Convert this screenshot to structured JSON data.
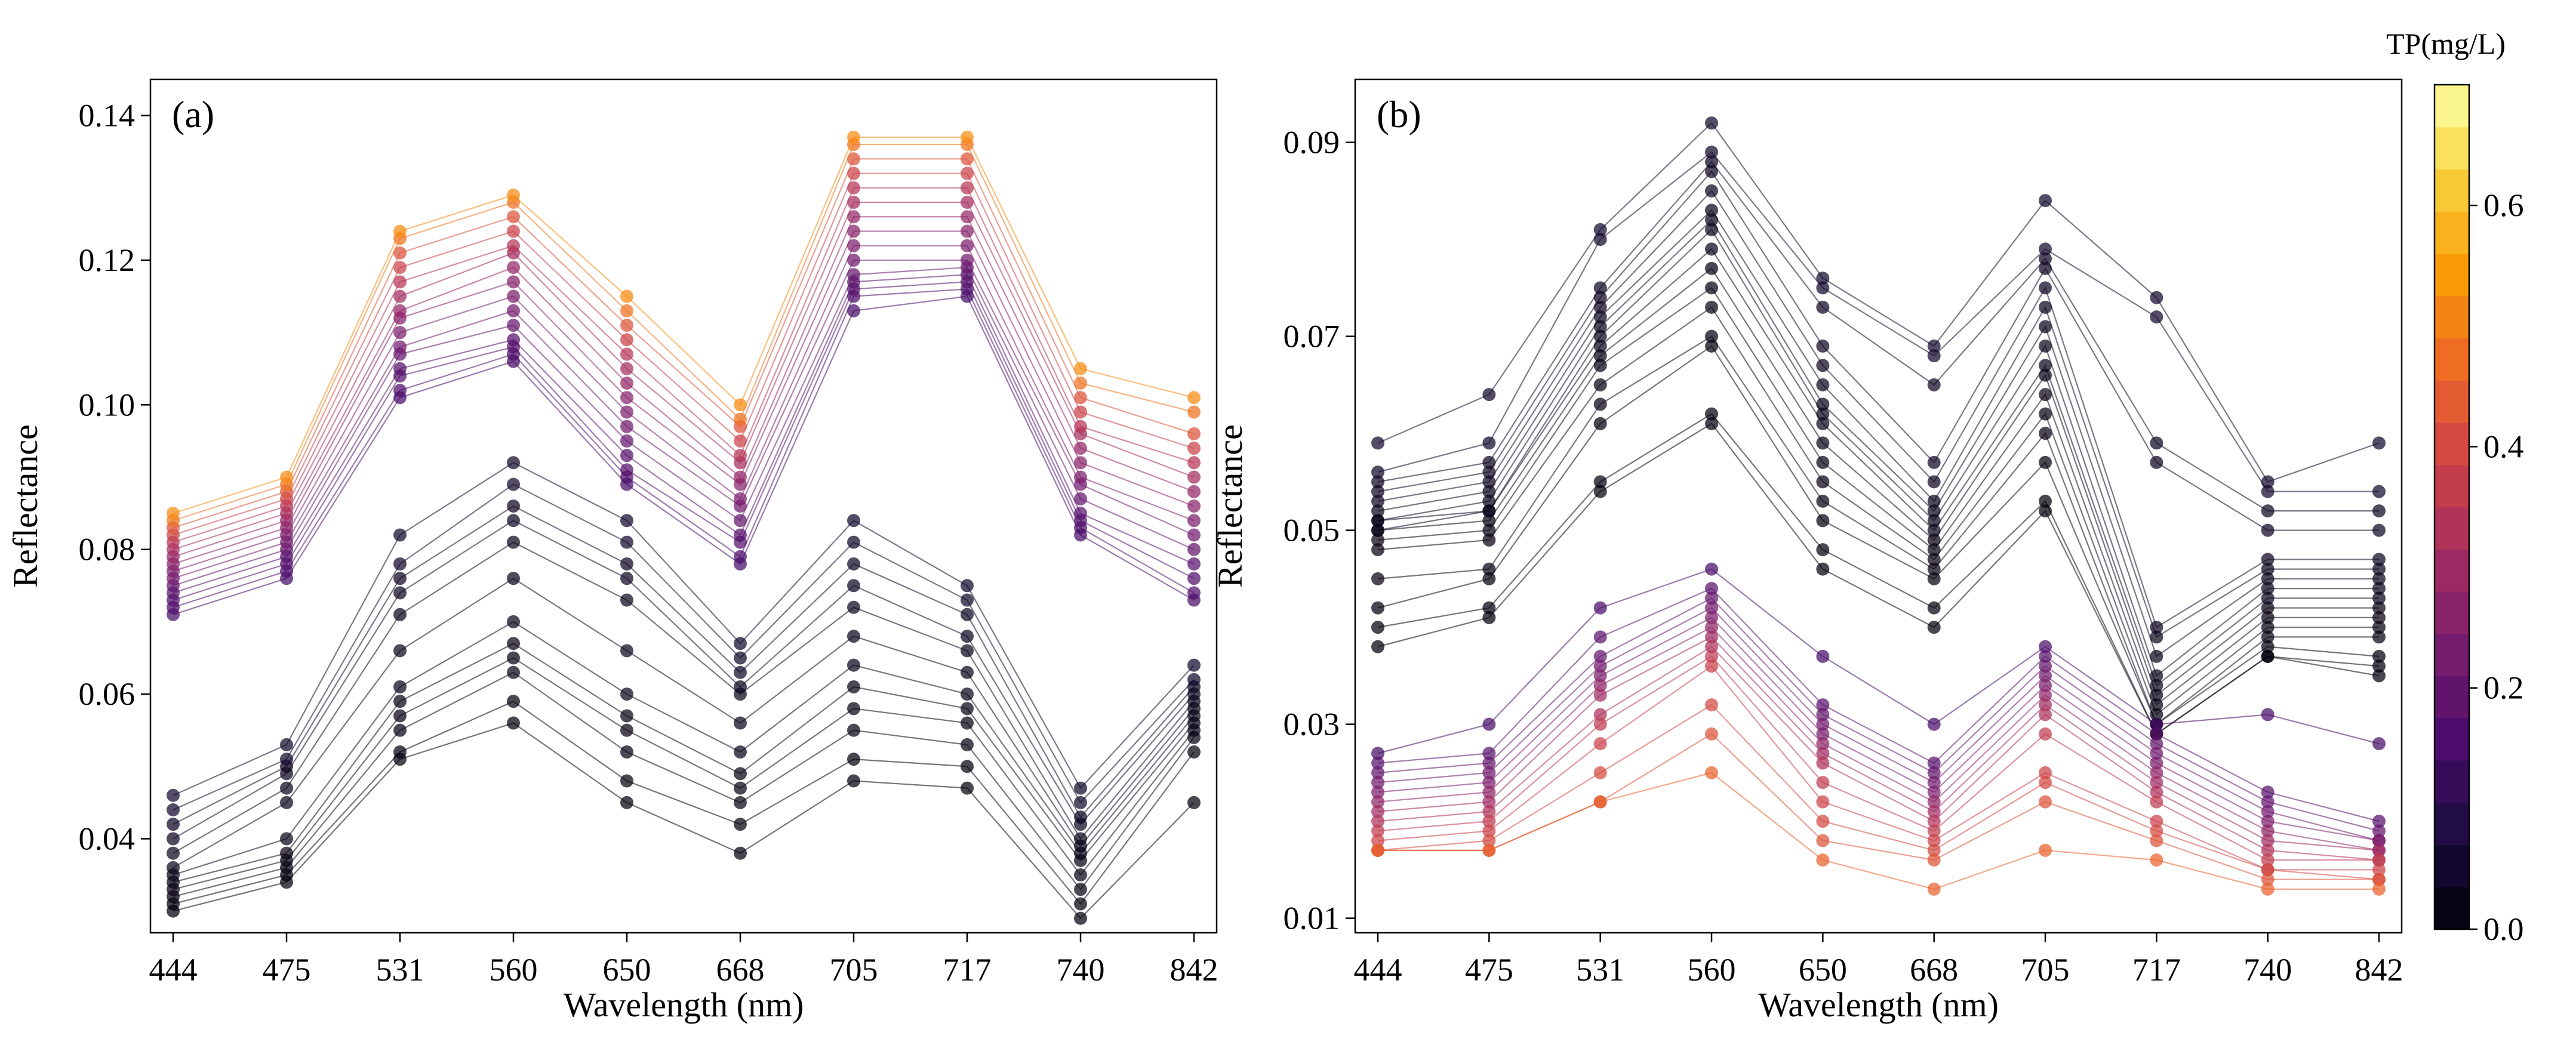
{
  "chart_data": [
    {
      "type": "line",
      "panel_label": "(a)",
      "xlabel": "Wavelength (nm)",
      "ylabel": "Reflectance",
      "categories": [
        "444",
        "475",
        "531",
        "560",
        "650",
        "668",
        "705",
        "717",
        "740",
        "842"
      ],
      "ylim": [
        0.027,
        0.145
      ],
      "yticks": [
        0.04,
        0.06,
        0.08,
        0.1,
        0.12,
        0.14
      ],
      "ytick_labels": [
        "0.04",
        "0.06",
        "0.08",
        "0.10",
        "0.12",
        "0.14"
      ],
      "marker": "circle",
      "series": [
        {
          "name": "a1",
          "tp": 0.52,
          "values": [
            0.085,
            0.09,
            0.124,
            0.129,
            0.115,
            0.1,
            0.137,
            0.137,
            0.105,
            0.101
          ]
        },
        {
          "name": "a2",
          "tp": 0.48,
          "values": [
            0.084,
            0.089,
            0.123,
            0.128,
            0.113,
            0.098,
            0.136,
            0.136,
            0.103,
            0.099
          ]
        },
        {
          "name": "a3",
          "tp": 0.42,
          "values": [
            0.083,
            0.088,
            0.121,
            0.126,
            0.111,
            0.097,
            0.134,
            0.134,
            0.101,
            0.096
          ]
        },
        {
          "name": "a4",
          "tp": 0.38,
          "values": [
            0.082,
            0.087,
            0.119,
            0.124,
            0.109,
            0.095,
            0.132,
            0.132,
            0.099,
            0.094
          ]
        },
        {
          "name": "a5",
          "tp": 0.34,
          "values": [
            0.081,
            0.086,
            0.117,
            0.122,
            0.107,
            0.093,
            0.13,
            0.13,
            0.097,
            0.092
          ]
        },
        {
          "name": "a6",
          "tp": 0.31,
          "values": [
            0.08,
            0.085,
            0.115,
            0.121,
            0.105,
            0.092,
            0.128,
            0.128,
            0.096,
            0.09
          ]
        },
        {
          "name": "a7",
          "tp": 0.28,
          "values": [
            0.079,
            0.084,
            0.113,
            0.119,
            0.103,
            0.09,
            0.126,
            0.126,
            0.094,
            0.088
          ]
        },
        {
          "name": "a8",
          "tp": 0.26,
          "values": [
            0.078,
            0.083,
            0.112,
            0.117,
            0.101,
            0.089,
            0.124,
            0.124,
            0.092,
            0.086
          ]
        },
        {
          "name": "a9",
          "tp": 0.24,
          "values": [
            0.077,
            0.082,
            0.11,
            0.115,
            0.099,
            0.087,
            0.122,
            0.122,
            0.09,
            0.084
          ]
        },
        {
          "name": "a10",
          "tp": 0.22,
          "values": [
            0.076,
            0.081,
            0.108,
            0.113,
            0.097,
            0.086,
            0.12,
            0.12,
            0.089,
            0.082
          ]
        },
        {
          "name": "a11",
          "tp": 0.2,
          "values": [
            0.075,
            0.08,
            0.107,
            0.111,
            0.095,
            0.084,
            0.118,
            0.119,
            0.087,
            0.08
          ]
        },
        {
          "name": "a12",
          "tp": 0.18,
          "values": [
            0.074,
            0.079,
            0.105,
            0.109,
            0.093,
            0.082,
            0.117,
            0.118,
            0.085,
            0.078
          ]
        },
        {
          "name": "a13",
          "tp": 0.17,
          "values": [
            0.073,
            0.078,
            0.104,
            0.108,
            0.091,
            0.081,
            0.116,
            0.117,
            0.084,
            0.076
          ]
        },
        {
          "name": "a14",
          "tp": 0.16,
          "values": [
            0.072,
            0.077,
            0.102,
            0.107,
            0.09,
            0.079,
            0.115,
            0.116,
            0.083,
            0.074
          ]
        },
        {
          "name": "a15",
          "tp": 0.15,
          "values": [
            0.071,
            0.076,
            0.101,
            0.106,
            0.089,
            0.078,
            0.113,
            0.115,
            0.082,
            0.073
          ]
        },
        {
          "name": "a16",
          "tp": 0.05,
          "values": [
            0.046,
            0.053,
            0.082,
            0.092,
            0.084,
            0.067,
            0.084,
            0.075,
            0.047,
            0.064
          ]
        },
        {
          "name": "a17",
          "tp": 0.05,
          "values": [
            0.044,
            0.051,
            0.078,
            0.089,
            0.081,
            0.065,
            0.081,
            0.073,
            0.045,
            0.062
          ]
        },
        {
          "name": "a18",
          "tp": 0.04,
          "values": [
            0.042,
            0.05,
            0.076,
            0.086,
            0.078,
            0.063,
            0.078,
            0.071,
            0.043,
            0.061
          ]
        },
        {
          "name": "a19",
          "tp": 0.04,
          "values": [
            0.04,
            0.049,
            0.074,
            0.084,
            0.076,
            0.061,
            0.075,
            0.068,
            0.042,
            0.06
          ]
        },
        {
          "name": "a20",
          "tp": 0.03,
          "values": [
            0.038,
            0.047,
            0.071,
            0.081,
            0.073,
            0.06,
            0.072,
            0.066,
            0.04,
            0.059
          ]
        },
        {
          "name": "a21",
          "tp": 0.03,
          "values": [
            0.036,
            0.045,
            0.066,
            0.076,
            0.066,
            0.056,
            0.068,
            0.063,
            0.039,
            0.058
          ]
        },
        {
          "name": "a22",
          "tp": 0.03,
          "values": [
            0.035,
            0.04,
            0.061,
            0.07,
            0.06,
            0.052,
            0.064,
            0.06,
            0.038,
            0.057
          ]
        },
        {
          "name": "a23",
          "tp": 0.02,
          "values": [
            0.034,
            0.038,
            0.059,
            0.067,
            0.057,
            0.049,
            0.061,
            0.058,
            0.037,
            0.056
          ]
        },
        {
          "name": "a24",
          "tp": 0.02,
          "values": [
            0.033,
            0.037,
            0.057,
            0.065,
            0.055,
            0.047,
            0.058,
            0.056,
            0.035,
            0.055
          ]
        },
        {
          "name": "a25",
          "tp": 0.02,
          "values": [
            0.032,
            0.036,
            0.055,
            0.063,
            0.052,
            0.045,
            0.055,
            0.053,
            0.033,
            0.054
          ]
        },
        {
          "name": "a26",
          "tp": 0.01,
          "values": [
            0.031,
            0.035,
            0.052,
            0.059,
            0.048,
            0.042,
            0.051,
            0.05,
            0.031,
            0.052
          ]
        },
        {
          "name": "a27",
          "tp": 0.01,
          "values": [
            0.03,
            0.034,
            0.051,
            0.056,
            0.045,
            0.038,
            0.048,
            0.047,
            0.029,
            0.045
          ]
        }
      ]
    },
    {
      "type": "line",
      "panel_label": "(b)",
      "xlabel": "Wavelength (nm)",
      "ylabel": "Reflectance",
      "categories": [
        "444",
        "475",
        "531",
        "560",
        "650",
        "668",
        "705",
        "717",
        "740",
        "842"
      ],
      "ylim": [
        0.0085,
        0.0965
      ],
      "yticks": [
        0.01,
        0.03,
        0.05,
        0.07,
        0.09
      ],
      "ytick_labels": [
        "0.01",
        "0.03",
        "0.05",
        "0.07",
        "0.09"
      ],
      "marker": "circle",
      "series": [
        {
          "name": "b1",
          "tp": 0.05,
          "values": [
            0.059,
            0.064,
            0.081,
            0.092,
            0.076,
            0.069,
            0.084,
            0.074,
            0.055,
            0.059
          ]
        },
        {
          "name": "b2",
          "tp": 0.05,
          "values": [
            0.056,
            0.059,
            0.08,
            0.089,
            0.075,
            0.068,
            0.079,
            0.072,
            0.054,
            0.054
          ]
        },
        {
          "name": "b3",
          "tp": 0.04,
          "values": [
            0.055,
            0.057,
            0.075,
            0.088,
            0.073,
            0.065,
            0.078,
            0.059,
            0.052,
            0.052
          ]
        },
        {
          "name": "b4",
          "tp": 0.04,
          "values": [
            0.054,
            0.056,
            0.074,
            0.087,
            0.069,
            0.057,
            0.077,
            0.057,
            0.05,
            0.05
          ]
        },
        {
          "name": "b5",
          "tp": 0.04,
          "values": [
            0.053,
            0.055,
            0.073,
            0.085,
            0.067,
            0.055,
            0.075,
            0.04,
            0.047,
            0.047
          ]
        },
        {
          "name": "b6",
          "tp": 0.03,
          "values": [
            0.052,
            0.054,
            0.072,
            0.083,
            0.065,
            0.053,
            0.073,
            0.039,
            0.046,
            0.046
          ]
        },
        {
          "name": "b7",
          "tp": 0.03,
          "values": [
            0.051,
            0.053,
            0.071,
            0.082,
            0.063,
            0.052,
            0.071,
            0.037,
            0.045,
            0.045
          ]
        },
        {
          "name": "b8",
          "tp": 0.03,
          "values": [
            0.051,
            0.052,
            0.07,
            0.081,
            0.062,
            0.051,
            0.069,
            0.035,
            0.044,
            0.044
          ]
        },
        {
          "name": "b9",
          "tp": 0.03,
          "values": [
            0.05,
            0.052,
            0.069,
            0.079,
            0.061,
            0.05,
            0.067,
            0.034,
            0.043,
            0.043
          ]
        },
        {
          "name": "b10",
          "tp": 0.02,
          "values": [
            0.05,
            0.051,
            0.068,
            0.077,
            0.059,
            0.049,
            0.066,
            0.033,
            0.042,
            0.042
          ]
        },
        {
          "name": "b11",
          "tp": 0.02,
          "values": [
            0.049,
            0.05,
            0.067,
            0.075,
            0.057,
            0.048,
            0.064,
            0.032,
            0.041,
            0.041
          ]
        },
        {
          "name": "b12",
          "tp": 0.02,
          "values": [
            0.048,
            0.049,
            0.065,
            0.073,
            0.055,
            0.047,
            0.062,
            0.031,
            0.04,
            0.04
          ]
        },
        {
          "name": "b13",
          "tp": 0.02,
          "values": [
            0.045,
            0.046,
            0.063,
            0.07,
            0.053,
            0.046,
            0.06,
            0.03,
            0.039,
            0.039
          ]
        },
        {
          "name": "b14",
          "tp": 0.01,
          "values": [
            0.042,
            0.045,
            0.061,
            0.069,
            0.051,
            0.045,
            0.057,
            0.03,
            0.038,
            0.037
          ]
        },
        {
          "name": "b15",
          "tp": 0.01,
          "values": [
            0.04,
            0.042,
            0.055,
            0.062,
            0.048,
            0.042,
            0.053,
            0.029,
            0.037,
            0.036
          ]
        },
        {
          "name": "b16",
          "tp": 0.01,
          "values": [
            0.038,
            0.041,
            0.054,
            0.061,
            0.046,
            0.04,
            0.052,
            0.029,
            0.037,
            0.035
          ]
        },
        {
          "name": "b17",
          "tp": 0.15,
          "values": [
            0.027,
            0.03,
            0.042,
            0.046,
            0.037,
            0.03,
            0.038,
            0.03,
            0.031,
            0.028
          ]
        },
        {
          "name": "b18",
          "tp": 0.18,
          "values": [
            0.026,
            0.027,
            0.039,
            0.044,
            0.032,
            0.026,
            0.037,
            0.029,
            0.023,
            0.02
          ]
        },
        {
          "name": "b19",
          "tp": 0.2,
          "values": [
            0.025,
            0.026,
            0.037,
            0.043,
            0.031,
            0.025,
            0.036,
            0.028,
            0.022,
            0.019
          ]
        },
        {
          "name": "b20",
          "tp": 0.22,
          "values": [
            0.024,
            0.025,
            0.036,
            0.042,
            0.03,
            0.024,
            0.035,
            0.027,
            0.021,
            0.018
          ]
        },
        {
          "name": "b21",
          "tp": 0.24,
          "values": [
            0.023,
            0.024,
            0.035,
            0.041,
            0.029,
            0.023,
            0.034,
            0.026,
            0.02,
            0.018
          ]
        },
        {
          "name": "b22",
          "tp": 0.27,
          "values": [
            0.022,
            0.023,
            0.034,
            0.04,
            0.028,
            0.022,
            0.033,
            0.025,
            0.019,
            0.017
          ]
        },
        {
          "name": "b23",
          "tp": 0.3,
          "values": [
            0.021,
            0.022,
            0.033,
            0.039,
            0.027,
            0.021,
            0.032,
            0.024,
            0.018,
            0.017
          ]
        },
        {
          "name": "b24",
          "tp": 0.33,
          "values": [
            0.02,
            0.021,
            0.031,
            0.038,
            0.026,
            0.02,
            0.031,
            0.023,
            0.017,
            0.016
          ]
        },
        {
          "name": "b25",
          "tp": 0.36,
          "values": [
            0.019,
            0.02,
            0.03,
            0.037,
            0.024,
            0.019,
            0.029,
            0.022,
            0.016,
            0.016
          ]
        },
        {
          "name": "b26",
          "tp": 0.38,
          "values": [
            0.018,
            0.019,
            0.028,
            0.036,
            0.022,
            0.018,
            0.025,
            0.02,
            0.015,
            0.015
          ]
        },
        {
          "name": "b27",
          "tp": 0.4,
          "values": [
            0.017,
            0.018,
            0.025,
            0.032,
            0.02,
            0.017,
            0.024,
            0.019,
            0.015,
            0.014
          ]
        },
        {
          "name": "b28",
          "tp": 0.42,
          "values": [
            0.017,
            0.017,
            0.022,
            0.029,
            0.018,
            0.016,
            0.022,
            0.018,
            0.014,
            0.014
          ]
        },
        {
          "name": "b29",
          "tp": 0.45,
          "values": [
            0.017,
            0.017,
            0.022,
            0.025,
            0.016,
            0.013,
            0.017,
            0.016,
            0.013,
            0.013
          ]
        }
      ]
    }
  ],
  "colorbar": {
    "title": "TP(mg/L)",
    "colormap": "inferno",
    "range": [
      0.0,
      0.7
    ],
    "levels": 20,
    "ticks": [
      0.0,
      0.2,
      0.4,
      0.6
    ],
    "tick_labels": [
      "0.0",
      "0.2",
      "0.4",
      "0.6"
    ],
    "stops": [
      "#000004",
      "#1b0c41",
      "#4a0c6b",
      "#781c6d",
      "#a52c60",
      "#cf4446",
      "#ed6925",
      "#fb9b06",
      "#f7d13d",
      "#fcffa4"
    ]
  }
}
